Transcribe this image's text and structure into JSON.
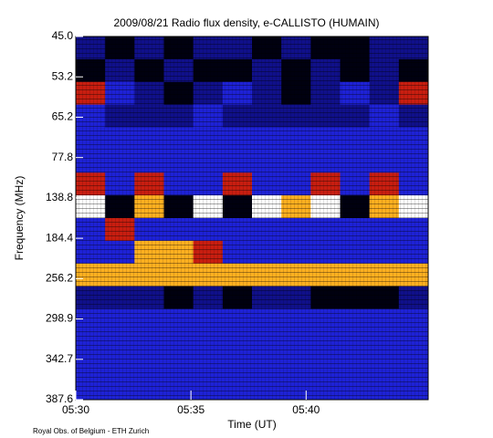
{
  "chart_data": {
    "type": "heatmap",
    "title": "2009/08/21  Radio flux density, e-CALLISTO (HUMAIN)",
    "x_label": "Time (UT)",
    "y_label": "Frequency (MHz)",
    "footer": "Royal Obs. of Belgium - ETH Zurich",
    "xlim": [
      30,
      45.3
    ],
    "xticks": [
      {
        "value": 30,
        "label": "05:30"
      },
      {
        "value": 35,
        "label": "05:35"
      },
      {
        "value": 40,
        "label": "05:40"
      }
    ],
    "yticks": [
      {
        "value": 45,
        "label": "45.0"
      },
      53.2,
      65.2,
      77.8,
      138.8,
      184.4,
      256.2,
      298.9,
      342.7,
      387.6
    ],
    "colors": [
      "#000010",
      "#10108a",
      "#1e22d6",
      "#c81e10",
      "#ffb020",
      "#ffffff"
    ],
    "z": [
      [
        1,
        0,
        1,
        0,
        1,
        1,
        0,
        1,
        0,
        0,
        1,
        1
      ],
      [
        0,
        1,
        0,
        1,
        0,
        0,
        1,
        0,
        1,
        0,
        1,
        0
      ],
      [
        3,
        2,
        1,
        0,
        1,
        2,
        1,
        0,
        1,
        2,
        1,
        3
      ],
      [
        2,
        1,
        1,
        1,
        2,
        1,
        1,
        1,
        1,
        1,
        2,
        1
      ],
      [
        2,
        2,
        2,
        2,
        2,
        2,
        2,
        2,
        2,
        2,
        2,
        2
      ],
      [
        2,
        2,
        2,
        2,
        2,
        2,
        2,
        2,
        2,
        2,
        2,
        2
      ],
      [
        3,
        2,
        3,
        2,
        2,
        3,
        2,
        2,
        3,
        2,
        3,
        2
      ],
      [
        5,
        0,
        4,
        0,
        5,
        0,
        5,
        4,
        5,
        0,
        4,
        5
      ],
      [
        2,
        3,
        2,
        2,
        2,
        2,
        2,
        2,
        2,
        2,
        2,
        2
      ],
      [
        2,
        2,
        4,
        4,
        3,
        2,
        2,
        2,
        2,
        2,
        2,
        2
      ],
      [
        4,
        4,
        4,
        4,
        4,
        4,
        4,
        4,
        4,
        4,
        4,
        4
      ],
      [
        1,
        1,
        1,
        0,
        1,
        0,
        1,
        1,
        0,
        0,
        0,
        1
      ],
      [
        2,
        2,
        2,
        2,
        2,
        2,
        2,
        2,
        2,
        2,
        2,
        2
      ],
      [
        2,
        2,
        2,
        2,
        2,
        2,
        2,
        2,
        2,
        2,
        2,
        2
      ],
      [
        2,
        2,
        2,
        2,
        2,
        2,
        2,
        2,
        2,
        2,
        2,
        2
      ],
      [
        2,
        2,
        2,
        2,
        2,
        2,
        2,
        2,
        2,
        2,
        2,
        2
      ]
    ]
  }
}
